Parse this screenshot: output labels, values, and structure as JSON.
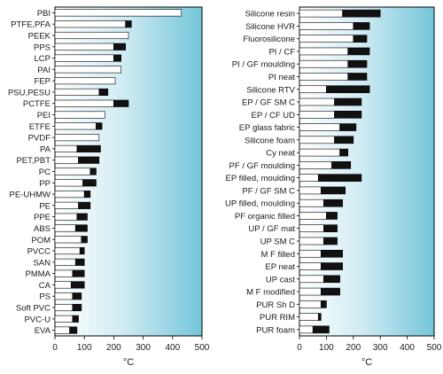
{
  "chart_data": [
    {
      "type": "bar",
      "stacked": true,
      "orientation": "horizontal",
      "xlabel": "°C",
      "xlim": [
        0,
        500
      ],
      "xticks": [
        0,
        100,
        200,
        300,
        400,
        500
      ],
      "grid": false,
      "background": "blue-to-white gradient",
      "colors": {
        "low": "#ffffff",
        "high": "#111111",
        "outline": "#000000"
      },
      "categories": [
        "PBI",
        "PTFE,PFA",
        "PEEK",
        "PPS",
        "LCP",
        "PAI",
        "FEP",
        "PSU,PESU",
        "PCTFE",
        "PEI",
        "ETFE",
        "PVDF",
        "PA",
        "PET,PBT",
        "PC",
        "PP",
        "PE-UHMW",
        "PE",
        "PPE",
        "ABS",
        "POM",
        "PVCC",
        "SAN",
        "PMMA",
        "CA",
        "PS",
        "Soft PVC",
        "PVC-U",
        "EVA"
      ],
      "low": [
        430,
        240,
        250,
        200,
        200,
        225,
        205,
        150,
        200,
        170,
        140,
        150,
        75,
        80,
        120,
        95,
        100,
        80,
        75,
        70,
        90,
        85,
        70,
        60,
        55,
        60,
        60,
        60,
        50
      ],
      "high": [
        430,
        260,
        250,
        240,
        225,
        225,
        205,
        180,
        250,
        170,
        160,
        150,
        155,
        150,
        140,
        140,
        120,
        120,
        110,
        110,
        110,
        100,
        100,
        100,
        100,
        90,
        90,
        80,
        75
      ]
    },
    {
      "type": "bar",
      "stacked": true,
      "orientation": "horizontal",
      "xlabel": "°C",
      "xlim": [
        0,
        500
      ],
      "xticks": [
        0,
        100,
        200,
        300,
        400,
        500
      ],
      "grid": false,
      "background": "blue-to-white gradient",
      "colors": {
        "low": "#ffffff",
        "high": "#111111",
        "outline": "#000000"
      },
      "categories": [
        "Silicone resin",
        "Silicone HVR",
        "Fluorosilicone",
        "PI / CF",
        "PI / GF moulding",
        "PI neat",
        "Silicone RTV",
        "EP / GF SM C",
        "EP / CF UD",
        "EP glass fabric",
        "Silicone foam",
        "Cy neat",
        "PF / GF moulding",
        "EP filled, moulding",
        "PF / GF SM C",
        "UP filled, moulding",
        "PF organic filled",
        "UP / GF mat",
        "UP SM C",
        "M F filled",
        "EP neat",
        "UP cast",
        "M F modified",
        "PUR Sh D",
        "PUR RIM",
        "PUR foam"
      ],
      "low": [
        160,
        200,
        200,
        180,
        180,
        180,
        100,
        130,
        130,
        150,
        130,
        150,
        120,
        70,
        80,
        90,
        100,
        90,
        90,
        80,
        80,
        90,
        80,
        80,
        70,
        50
      ],
      "high": [
        300,
        260,
        250,
        260,
        250,
        250,
        260,
        230,
        230,
        210,
        200,
        180,
        190,
        230,
        170,
        160,
        140,
        140,
        140,
        160,
        160,
        150,
        150,
        100,
        80,
        110
      ]
    }
  ]
}
